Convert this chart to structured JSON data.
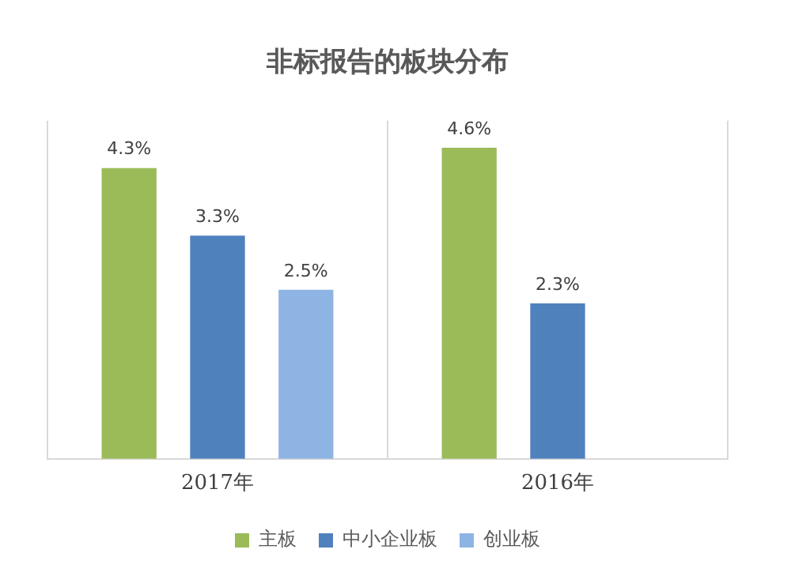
{
  "chart_data": {
    "type": "bar",
    "title": "非标报告的板块分布",
    "categories": [
      "2017年",
      "2016年"
    ],
    "series": [
      {
        "name": "主板",
        "color": "#9bbb59",
        "values": [
          4.3,
          4.6
        ],
        "value_labels": [
          "4.3%",
          "4.6%"
        ]
      },
      {
        "name": "中小企业板",
        "color": "#4f81bd",
        "values": [
          3.3,
          2.3
        ],
        "value_labels": [
          "3.3%",
          "2.3%"
        ]
      },
      {
        "name": "创业板",
        "color": "#8eb4e3",
        "values": [
          2.5,
          null
        ],
        "value_labels": [
          "2.5%",
          null
        ]
      }
    ],
    "grid": "x",
    "legend": "bottom",
    "tick_labels": "x"
  }
}
